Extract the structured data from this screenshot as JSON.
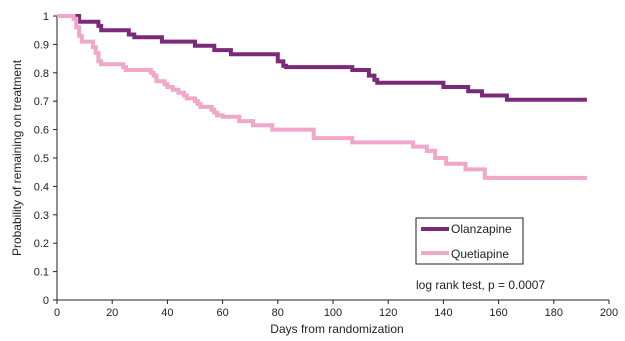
{
  "chart_data": {
    "type": "line",
    "step": true,
    "xlabel": "Days from randomization",
    "ylabel": "Probability of remaining on treatment",
    "xlim": [
      0,
      200
    ],
    "ylim": [
      0,
      1
    ],
    "xticks": [
      "0",
      "20",
      "40",
      "60",
      "80",
      "100",
      "120",
      "140",
      "160",
      "180",
      "200"
    ],
    "yticks": [
      "0",
      "0.1",
      "0.2",
      "0.3",
      "0.4",
      "0.5",
      "0.6",
      "0.7",
      "0.8",
      "0.9",
      "1"
    ],
    "grid": false,
    "legend_position": "lower-right",
    "annotation": "log rank test, p = 0.0007",
    "series": [
      {
        "name": "Olanzapine",
        "color": "#7b2a7a",
        "x": [
          0,
          7,
          8,
          14,
          15,
          16,
          24,
          26,
          28,
          36,
          38,
          48,
          50,
          55,
          57,
          62,
          63,
          79,
          80,
          82,
          83,
          106,
          107,
          112,
          113,
          115,
          116,
          139,
          140,
          148,
          149,
          153,
          154,
          162,
          163,
          192
        ],
        "y": [
          1.0,
          1.0,
          0.98,
          0.98,
          0.965,
          0.95,
          0.95,
          0.935,
          0.925,
          0.925,
          0.91,
          0.91,
          0.895,
          0.895,
          0.88,
          0.88,
          0.865,
          0.865,
          0.84,
          0.825,
          0.82,
          0.82,
          0.81,
          0.81,
          0.79,
          0.775,
          0.765,
          0.765,
          0.75,
          0.75,
          0.735,
          0.735,
          0.72,
          0.72,
          0.705,
          0.705
        ]
      },
      {
        "name": "Quetiapine",
        "color": "#f1a7c7",
        "x": [
          0,
          5,
          6,
          7,
          8,
          9,
          12,
          13,
          14,
          15,
          16,
          22,
          24,
          25,
          33,
          34,
          35,
          36,
          38,
          39,
          40,
          42,
          43,
          44,
          46,
          47,
          48,
          50,
          51,
          52,
          53,
          56,
          57,
          58,
          60,
          65,
          66,
          70,
          71,
          77,
          78,
          92,
          93,
          106,
          107,
          128,
          129,
          133,
          134,
          136,
          137,
          140,
          141,
          147,
          148,
          154,
          155,
          192
        ],
        "y": [
          1.0,
          1.0,
          0.99,
          0.96,
          0.93,
          0.91,
          0.91,
          0.89,
          0.87,
          0.84,
          0.83,
          0.83,
          0.82,
          0.81,
          0.81,
          0.8,
          0.79,
          0.77,
          0.77,
          0.76,
          0.75,
          0.74,
          0.74,
          0.73,
          0.72,
          0.71,
          0.71,
          0.7,
          0.69,
          0.68,
          0.68,
          0.67,
          0.66,
          0.65,
          0.645,
          0.645,
          0.63,
          0.63,
          0.615,
          0.615,
          0.6,
          0.6,
          0.57,
          0.57,
          0.555,
          0.555,
          0.54,
          0.54,
          0.525,
          0.525,
          0.5,
          0.5,
          0.48,
          0.48,
          0.46,
          0.46,
          0.43,
          0.43
        ]
      }
    ]
  }
}
